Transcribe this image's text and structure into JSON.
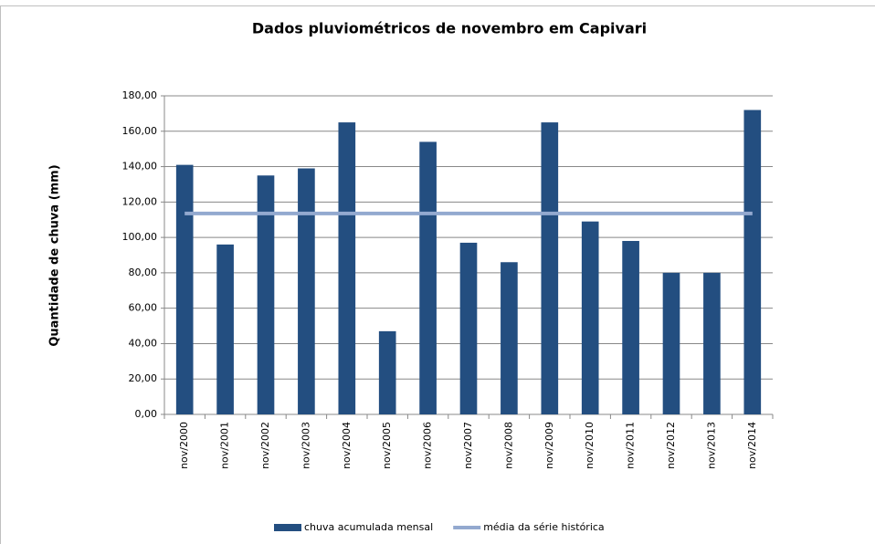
{
  "chart_data": {
    "type": "bar",
    "title": "Dados pluviométricos de novembro em Capivari",
    "y_label": "Quantidade de chuva (mm)",
    "categories": [
      "nov/2000",
      "nov/2001",
      "nov/2002",
      "nov/2003",
      "nov/2004",
      "nov/2005",
      "nov/2006",
      "nov/2007",
      "nov/2008",
      "nov/2009",
      "nov/2010",
      "nov/2011",
      "nov/2012",
      "nov/2013",
      "nov/2014"
    ],
    "series": [
      {
        "name": "chuva acumulada mensal",
        "type": "bar",
        "color": "#234e80",
        "values": [
          141,
          96,
          135,
          139,
          165,
          47,
          154,
          97,
          86,
          165,
          109,
          98,
          80,
          80,
          172
        ]
      },
      {
        "name": "média da série histórica",
        "type": "line",
        "color": "#93a9cf",
        "values": [
          113.5,
          113.5,
          113.5,
          113.5,
          113.5,
          113.5,
          113.5,
          113.5,
          113.5,
          113.5,
          113.5,
          113.5,
          113.5,
          113.5,
          113.5
        ]
      }
    ],
    "ylim": [
      0,
      180
    ],
    "yticks": [
      {
        "value": 0,
        "label": "0,00"
      },
      {
        "value": 20,
        "label": "20,00"
      },
      {
        "value": 40,
        "label": "40,00"
      },
      {
        "value": 60,
        "label": "60,00"
      },
      {
        "value": 80,
        "label": "80,00"
      },
      {
        "value": 100,
        "label": "100,00"
      },
      {
        "value": 120,
        "label": "120,00"
      },
      {
        "value": 140,
        "label": "140,00"
      },
      {
        "value": 160,
        "label": "160,00"
      },
      {
        "value": 180,
        "label": "180,00"
      }
    ],
    "grid": true,
    "legend": "bottom"
  }
}
